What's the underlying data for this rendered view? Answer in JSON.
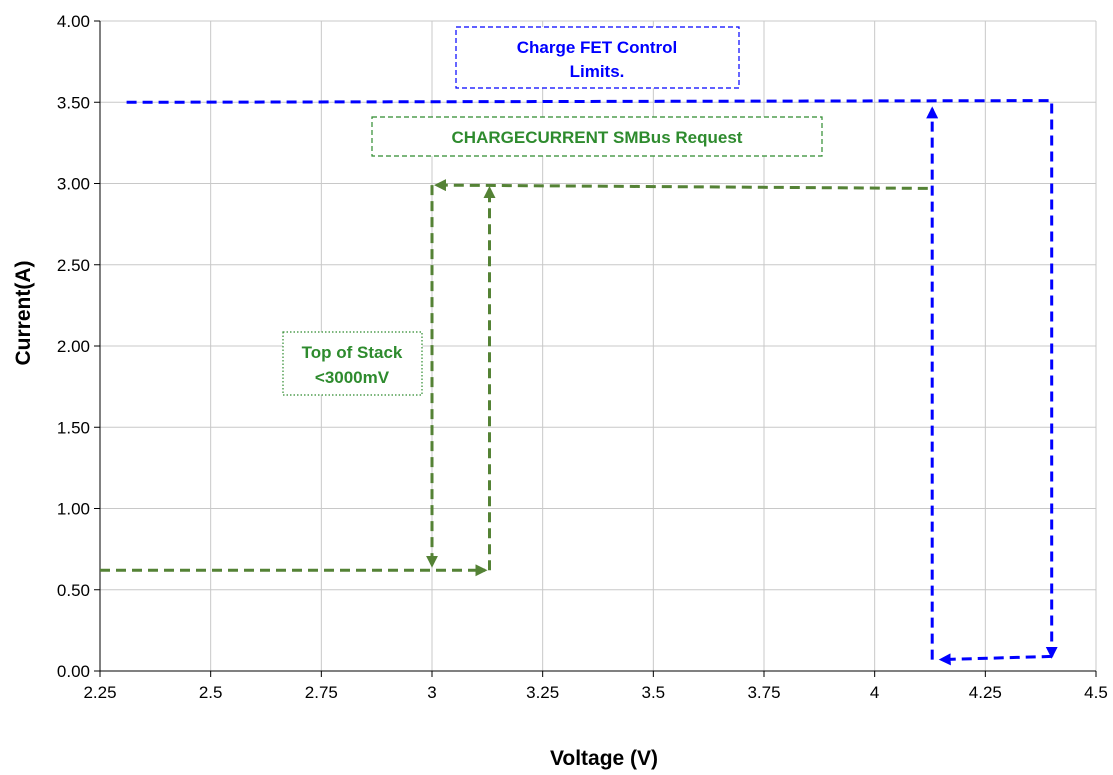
{
  "chart_data": {
    "type": "line",
    "title": "",
    "xlabel": "Voltage (V)",
    "ylabel": "Current(A)",
    "xlim": [
      2.25,
      4.5
    ],
    "ylim": [
      0.0,
      4.0
    ],
    "x_ticks": [
      "2.25",
      "2.5",
      "2.75",
      "3",
      "3.25",
      "3.5",
      "3.75",
      "4",
      "4.25",
      "4.5"
    ],
    "y_ticks": [
      "0.00",
      "0.50",
      "1.00",
      "1.50",
      "2.00",
      "2.50",
      "3.00",
      "3.50",
      "4.00"
    ],
    "grid": true,
    "legend": "none",
    "series": [
      {
        "color": "#0000ff",
        "line_style": "dashed",
        "points": [
          [
            2.31,
            3.5
          ],
          [
            4.4,
            3.51
          ],
          [
            4.4,
            0.09
          ]
        ],
        "arrow_end": true
      },
      {
        "color": "#0000ff",
        "line_style": "dashed",
        "points": [
          [
            4.4,
            0.09
          ],
          [
            4.15,
            0.07
          ]
        ],
        "arrow_end": true
      },
      {
        "color": "#0000ff",
        "line_style": "dashed",
        "points": [
          [
            4.13,
            0.07
          ],
          [
            4.13,
            3.46
          ]
        ],
        "arrow_end": true
      },
      {
        "color": "#548235",
        "line_style": "dashed",
        "points": [
          [
            4.12,
            2.97
          ],
          [
            3.01,
            2.99
          ]
        ],
        "arrow_end": true
      },
      {
        "color": "#548235",
        "line_style": "dashed",
        "points": [
          [
            3.0,
            2.99
          ],
          [
            3.0,
            0.65
          ]
        ],
        "arrow_end": true
      },
      {
        "color": "#548235",
        "line_style": "dashed",
        "points": [
          [
            2.25,
            0.62
          ],
          [
            3.12,
            0.62
          ]
        ],
        "arrow_end": true
      },
      {
        "color": "#548235",
        "line_style": "dashed",
        "points": [
          [
            3.13,
            0.62
          ],
          [
            3.13,
            2.97
          ]
        ],
        "arrow_end": true
      }
    ],
    "annotations": [
      {
        "text_lines": [
          "Charge FET Control",
          "Limits."
        ],
        "color": "#0000ff",
        "border": "dashed"
      },
      {
        "text_lines": [
          "CHARGECURRENT SMBus Request"
        ],
        "color": "#2e8b2e",
        "border": "dashed"
      },
      {
        "text_lines": [
          "Top of Stack",
          "<3000mV"
        ],
        "color": "#2e8b2e",
        "border": "dotted"
      }
    ]
  }
}
